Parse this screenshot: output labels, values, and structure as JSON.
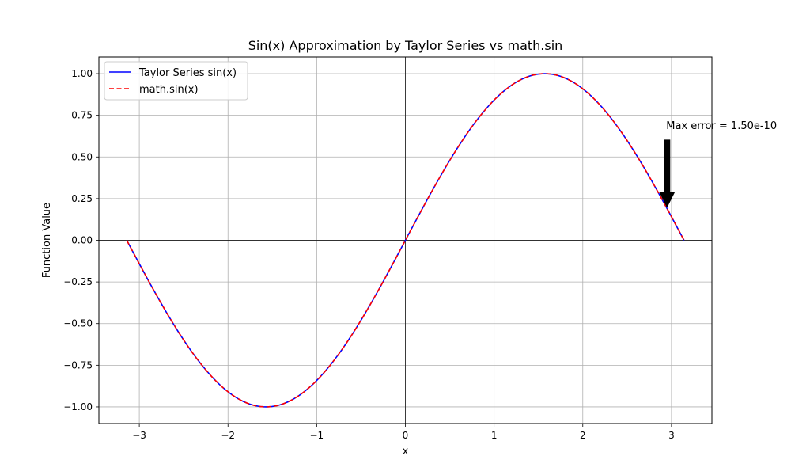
{
  "chart_data": {
    "type": "line",
    "title": "Sin(x) Approximation by Taylor Series vs math.sin",
    "xlabel": "x",
    "ylabel": "Function Value",
    "xlim": [
      -3.4557,
      3.4557
    ],
    "ylim": [
      -1.1,
      1.1
    ],
    "xticks": [
      -3,
      -2,
      -1,
      0,
      1,
      2,
      3
    ],
    "xtick_labels": [
      "−3",
      "−2",
      "−1",
      "0",
      "1",
      "2",
      "3"
    ],
    "yticks": [
      -1.0,
      -0.75,
      -0.5,
      -0.25,
      0.0,
      0.25,
      0.5,
      0.75,
      1.0
    ],
    "ytick_labels": [
      "−1.00",
      "−0.75",
      "−0.50",
      "−0.25",
      "0.00",
      "0.25",
      "0.50",
      "0.75",
      "1.00"
    ],
    "grid": true,
    "legend_position": "upper-left",
    "x_range": [
      -3.14159,
      3.14159
    ],
    "series": [
      {
        "name": "Taylor Series sin(x)",
        "function": "sin",
        "color": "#0000ff",
        "style": "solid"
      },
      {
        "name": "math.sin(x)",
        "function": "sin",
        "color": "#ff0000",
        "style": "dashed"
      }
    ],
    "reference_lines": {
      "horizontal": 0,
      "vertical": 0,
      "color": "#000000"
    },
    "annotation": {
      "text": "Max error = 1.50e-10",
      "point": [
        2.95,
        0.2
      ],
      "text_position": [
        2.95,
        0.63
      ],
      "color": "#000000"
    }
  }
}
